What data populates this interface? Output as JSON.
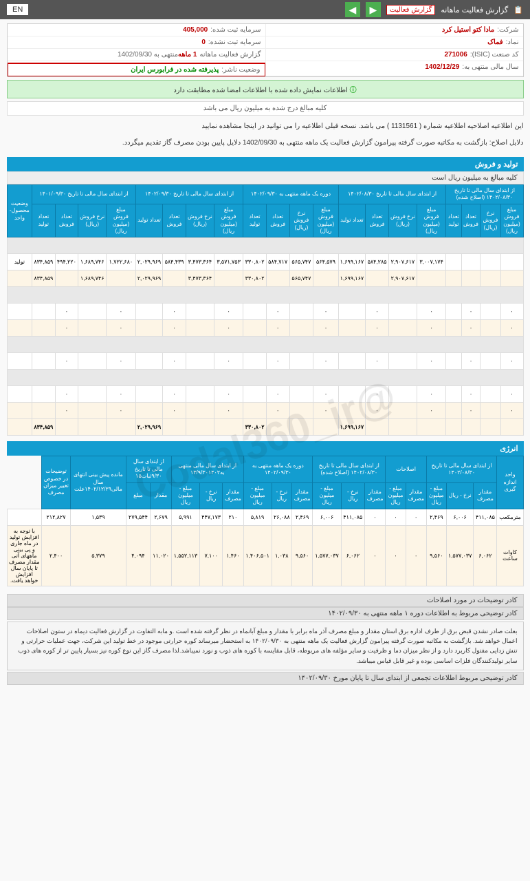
{
  "topbar": {
    "title": "گزارش فعالیت ماهانه",
    "dropdown": "گزارش فعالیت",
    "lang": "EN"
  },
  "info": {
    "company_label": "شرکت:",
    "company": "مادا کتو استیل کرد",
    "capital_reg_label": "سرمایه ثبت شده:",
    "capital_reg": "405,000",
    "symbol_label": "نماد:",
    "symbol": "فماک",
    "capital_unreg_label": "سرمایه ثبت نشده:",
    "capital_unreg": "0",
    "isic_label": "کد صنعت (ISIC):",
    "isic": "271006",
    "report_label": "گزارش فعالیت ماهانه",
    "report_period": "1 ماهه",
    "report_end": "منتهی به 1402/09/30",
    "fy_label": "سال مالی منتهی به:",
    "fy": "1402/12/29",
    "status_label": "وضعیت ناشر:",
    "status": "پذیرفته شده در فرابورس ایران"
  },
  "alert": "اطلاعات نمایش داده شده با اطلاعات امضا شده مطابقت دارد",
  "note": "کلیه مبالغ درج شده به میلیون ریال می باشد",
  "desc1": "این اطلاعیه اصلاحیه اطلاعیه شماره ( 1131561 ) می باشد. نسخه قبلی اطلاعیه را می توانید در اینجا مشاهده نمایید",
  "desc2": "دلایل اصلاح: بازگشت به مکاتبه صورت گرفته پیرامون گزارش فعالیت یک ماهه منتهی به 1402/09/30 دلایل پایین بودن مصرف گاز تقدیم میگردد.",
  "section1": {
    "title": "تولید و فروش",
    "sub": "کلیه مبالغ به میلیون ریال است",
    "headers_top": [
      "از ابتدای سال مالی تا تاریخ ۱۴۰۲/۰۸/۳۰ (اصلاح شده)",
      "از ابتدای سال مالی تا تاریخ ۱۴۰۲/۰۸/۳۰",
      "دوره یک ماهه منتهی به ۱۴۰۲/۰۹/۳۰",
      "از ابتدای سال مالی تا تاریخ ۱۴۰۲/۰۹/۳۰",
      "از ابتدای سال مالی تا تاریخ ۱۴۰۱/۰۹/۳۰",
      "وضعیت محصول-واحد"
    ],
    "sub_headers": [
      "مبلغ فروش (میلیون ریال)",
      "نرخ فروش (ریال)",
      "تعداد فروش",
      "تعداد تولید"
    ],
    "row1": [
      "۳,۰۰۷,۱۷۴",
      "۲,۹۰۷,۶۱۷",
      "۵۸۴,۲۸۵",
      "۱,۶۹۹,۱۶۷",
      "۵۶۴,۵۷۹",
      "۵۶۵,۷۴۷",
      "۵۸۴,۷۱۷",
      "۳۳۰,۸۰۲",
      "۳,۵۷۱,۷۵۳",
      "۳,۴۷۳,۳۶۴",
      "۵۸۴,۴۳۹",
      "۲,۰۲۹,۹۶۹",
      "۱,۷۲۲,۶۸۰",
      "۱,۶۸۹,۷۴۶",
      "۴۹۴,۲۲۰",
      "۸۳۴,۸۵۹",
      "تولید"
    ],
    "row2": [
      "",
      "۲,۹۰۷,۶۱۷",
      "",
      "۱,۶۹۹,۱۶۷",
      "",
      "۵۶۵,۷۴۷",
      "",
      "۳۳۰,۸۰۲",
      "",
      "۳,۴۷۳,۳۶۴",
      "",
      "۲,۰۲۹,۹۶۹",
      "",
      "۱,۶۸۹,۷۴۶",
      "",
      "۸۳۴,۸۵۹",
      ""
    ],
    "sum_row": [
      "",
      "",
      "",
      "۱,۶۹۹,۱۶۷",
      "",
      "",
      "",
      "۳۳۰,۸۰۲",
      "",
      "",
      "",
      "۲,۰۲۹,۹۶۹",
      "",
      "",
      "",
      "۸۳۴,۸۵۹",
      ""
    ]
  },
  "section2": {
    "title": "انرژی",
    "headers_top": [
      "واحد اندازه گیری",
      "از ابتدای سال مالی تا تاریخ ۱۴۰۲/۰۸/۳۰",
      "اصلاحات",
      "از ابتدای سال مالی تا تاریخ ۱۴۰۲/۰۸/۳۰ (اصلاح شده)",
      "دوره یک ماهه منتهی به ۱۴۰۲/۰۹/۳۰",
      "از ابتدای سال مالی منتهی به۱۳/۹/۳۰۱۴۰۲",
      "از ابتدای سال مالی تا تاریخ ۹/۳۰ثبات۱۵",
      "مانده پیش بینی انتهای سال مالی۱۴۰۲/۱۲/۲۹علت",
      "توضیحات در خصوص تغییر میزان مصرف"
    ],
    "sub_headers": [
      "مقدار مصرف",
      "نرخ - ریال",
      "مبلغ - میلیون ریال",
      "مقدار مصرف",
      "مبلغ - میلیون ریال",
      "مقدار مصرف",
      "نرخ - ریال",
      "مبلغ - میلیون ریال",
      "مقدار مصرف",
      "نرخ - ریال",
      "مبلغ - میلیون ریال",
      "مقدار مصرف",
      "نرخ - ریال",
      "مبلغ - میلیون ریال",
      "مقدار",
      "مبلغ",
      "مقدار مصرف"
    ],
    "row1": [
      "مترمکعب",
      "۴۱۱,۰۸۵",
      "۶,۰۰۶",
      "۲,۴۶۹",
      "۰",
      "۰",
      "۰",
      "۴۱۱,۰۸۵",
      "۶,۰۰۶",
      "۲,۴۶۹",
      "۲۶,۰۸۸",
      "۵,۸۱۹",
      "۲۱۰",
      "۴۴۷,۱۷۳",
      "۵,۹۹۱",
      "۲,۶۷۹",
      "۲۷۹,۵۴۴",
      "۱,۵۳۹",
      "۲۱۲,۸۲۷",
      ""
    ],
    "row2": [
      "کاوات ساعت",
      "۶,۰۶۲",
      "۱,۵۷۷,۰۳۷",
      "۹,۵۶۰",
      "۰",
      "۰",
      "۰",
      "۶,۰۶۲",
      "۱,۵۷۷,۰۳۷",
      "۹,۵۶۰",
      "۱,۰۳۸",
      "۱,۴۰۶,۵۰۱",
      "۱,۴۶۰",
      "۷,۱۰۰",
      "۱,۵۵۲,۱۱۳",
      "۱۱,۰۲۰",
      "۴,۰۹۴",
      "۵,۳۷۹",
      "۲,۴۰۰",
      "با توجه به افزایش تولید در ماه جاری و پی بینی ماههای آتی مقدار مصرف تا پایان سال افزایش خواهد یافت."
    ]
  },
  "explain": {
    "box_title": "کادر توضیحات در مورد اصلاحات",
    "sub1_title": "کادر توضیحی مربوط به اطلاعات دوره ۱ ماهه منتهی به ۱۴۰۲/۰۹/۳۰",
    "sub1_text": "بعلت صادر نشدن قبض برق از طرف اداره برق استان مقدار و مبلغ مصرف آذر ماه برابر با مقدار و مبلغ آبانماه در نظر گرفته شده است .و مابه التفاوت در گزارش فعالیت دیماه در ستون اصلاحات اعمال خواهد شد. بازگشت به مکاتبه صورت گرفته پیرامون گزارش فعالیت یک ماهه منتهی به ۱۴۰۲/۰۹/۳۰ به استحضار میرساند کوره حرارتی موجود در خط تولید این شرکت، جهت عملیات حرارتی و تنش زدایی مفتول کاربرد دارد و از نظر میزان دما و ظرفیت و سایر مؤلفه های مربوطه، قابل مقایسه با کوره های ذوب و نورد نمیباشد.لذا مصرف گاز این نوع کوره نیز بسیار پایین تر از کوره های ذوب سایر تولیدکنندگان فلزات اساسی بوده و غیر قابل قیاس میباشد.",
    "sub2_title": "کادر توضیحی مربوط اطلاعات تجمعی از ابتدای سال تا پایان مورخ ۱۴۰۲/۰۹/۳۰"
  },
  "watermark": "@Codal360_ir"
}
